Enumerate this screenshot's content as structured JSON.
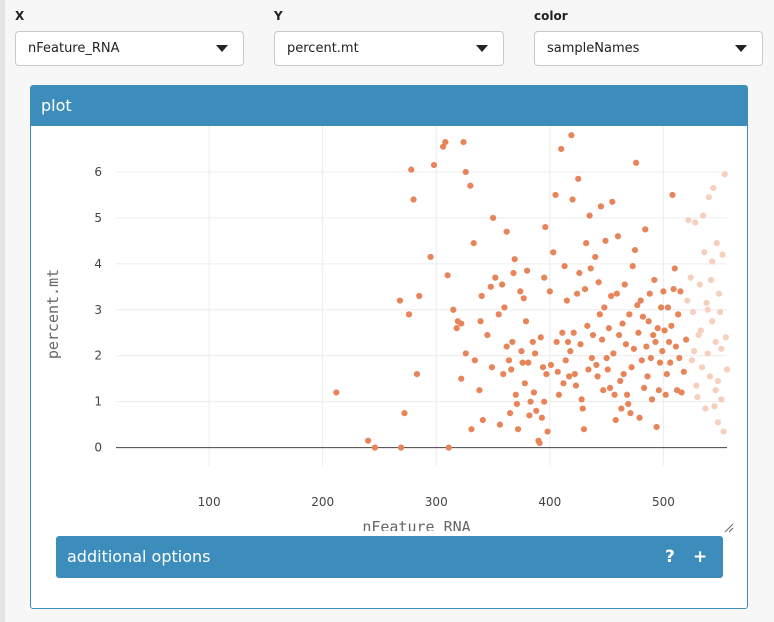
{
  "controls": {
    "x": {
      "label": "X",
      "value": "nFeature_RNA"
    },
    "y": {
      "label": "Y",
      "value": "percent.mt"
    },
    "color": {
      "label": "color",
      "value": "sampleNames"
    }
  },
  "card": {
    "title": "plot",
    "options_label": "additional options",
    "help_symbol": "?",
    "expand_symbol": "+"
  },
  "chart_data": {
    "type": "scatter",
    "xlabel": "nFeature_RNA",
    "ylabel": "percent.mt",
    "xlim": [
      18,
      556
    ],
    "ylim": [
      -0.4,
      7.0
    ],
    "x_ticks": [
      100,
      200,
      300,
      400,
      500
    ],
    "y_ticks": [
      0,
      1,
      2,
      3,
      4,
      5,
      6
    ],
    "grid": true,
    "color": "#e8845a",
    "faded_color": "#f6cfbd",
    "points": [
      [
        212,
        1.2
      ],
      [
        240,
        0.15
      ],
      [
        246,
        0
      ],
      [
        268,
        3.2
      ],
      [
        269,
        0
      ],
      [
        272,
        0.75
      ],
      [
        276,
        2.9
      ],
      [
        278,
        6.05
      ],
      [
        280,
        5.4
      ],
      [
        283,
        1.6
      ],
      [
        285,
        3.3
      ],
      [
        295,
        4.15
      ],
      [
        298,
        6.15
      ],
      [
        306,
        6.55
      ],
      [
        308,
        6.65
      ],
      [
        310,
        3.75
      ],
      [
        311,
        0
      ],
      [
        315,
        3
      ],
      [
        318,
        2.6
      ],
      [
        319,
        2.75
      ],
      [
        324,
        6.65
      ],
      [
        326,
        6
      ],
      [
        322,
        2.7
      ],
      [
        322,
        1.5
      ],
      [
        326,
        2.05
      ],
      [
        330,
        5.7
      ],
      [
        331,
        0.4
      ],
      [
        333,
        4.45
      ],
      [
        334,
        1.9
      ],
      [
        338,
        1.25
      ],
      [
        339,
        2.75
      ],
      [
        340,
        3.3
      ],
      [
        341,
        0.6
      ],
      [
        345,
        2.45
      ],
      [
        348,
        3.5
      ],
      [
        350,
        5.0
      ],
      [
        352,
        3.7
      ],
      [
        349,
        1.75
      ],
      [
        355,
        2.9
      ],
      [
        356,
        0.5
      ],
      [
        358,
        3.55
      ],
      [
        359,
        1.6
      ],
      [
        360,
        3.05
      ],
      [
        362,
        4.7
      ],
      [
        362,
        2.2
      ],
      [
        364,
        1.9
      ],
      [
        365,
        0.75
      ],
      [
        366,
        1.7
      ],
      [
        367,
        2.3
      ],
      [
        368,
        3.8
      ],
      [
        369,
        4.1
      ],
      [
        370,
        1.15
      ],
      [
        371,
        0.95
      ],
      [
        372,
        0.4
      ],
      [
        374,
        3.4
      ],
      [
        375,
        2.1
      ],
      [
        376,
        1.85
      ],
      [
        377,
        3.25
      ],
      [
        378,
        1.4
      ],
      [
        379,
        2.75
      ],
      [
        380,
        3.85
      ],
      [
        381,
        1.85
      ],
      [
        382,
        0.7
      ],
      [
        383,
        1.0
      ],
      [
        385,
        2.3
      ],
      [
        386,
        1.2
      ],
      [
        387,
        2.05
      ],
      [
        388,
        0.8
      ],
      [
        390,
        0.15
      ],
      [
        391,
        0.1
      ],
      [
        392,
        2.4
      ],
      [
        393,
        0.65
      ],
      [
        394,
        1.75
      ],
      [
        395,
        1.0
      ],
      [
        395,
        3.7
      ],
      [
        396,
        4.8
      ],
      [
        397,
        1.6
      ],
      [
        398,
        0.35
      ],
      [
        400,
        3.4
      ],
      [
        401,
        1.8
      ],
      [
        403,
        4.25
      ],
      [
        405,
        5.5
      ],
      [
        406,
        2.3
      ],
      [
        407,
        1.65
      ],
      [
        408,
        1.15
      ],
      [
        410,
        6.5
      ],
      [
        411,
        2.5
      ],
      [
        412,
        1.4
      ],
      [
        413,
        3.95
      ],
      [
        414,
        1.9
      ],
      [
        415,
        3.2
      ],
      [
        416,
        2.3
      ],
      [
        417,
        1.55
      ],
      [
        418,
        2.1
      ],
      [
        419,
        6.8
      ],
      [
        420,
        5.4
      ],
      [
        421,
        2.5
      ],
      [
        422,
        1.6
      ],
      [
        423,
        1.35
      ],
      [
        424,
        3.35
      ],
      [
        425,
        5.85
      ],
      [
        426,
        3.8
      ],
      [
        427,
        2.25
      ],
      [
        428,
        1.05
      ],
      [
        429,
        0.85
      ],
      [
        430,
        0.4
      ],
      [
        431,
        3.45
      ],
      [
        432,
        4.45
      ],
      [
        433,
        2.65
      ],
      [
        434,
        1.7
      ],
      [
        435,
        5.05
      ],
      [
        436,
        3.9
      ],
      [
        437,
        1.95
      ],
      [
        438,
        2.45
      ],
      [
        440,
        4.15
      ],
      [
        441,
        1.8
      ],
      [
        442,
        1.55
      ],
      [
        443,
        3.6
      ],
      [
        444,
        2.9
      ],
      [
        445,
        5.25
      ],
      [
        446,
        2.35
      ],
      [
        447,
        1.25
      ],
      [
        448,
        3.05
      ],
      [
        449,
        4.5
      ],
      [
        450,
        1.95
      ],
      [
        451,
        1.7
      ],
      [
        452,
        2.6
      ],
      [
        453,
        1.3
      ],
      [
        454,
        3.3
      ],
      [
        455,
        5.35
      ],
      [
        456,
        2.05
      ],
      [
        457,
        1.15
      ],
      [
        458,
        0.6
      ],
      [
        459,
        3.35
      ],
      [
        460,
        4.6
      ],
      [
        461,
        2.45
      ],
      [
        462,
        1.45
      ],
      [
        463,
        0.85
      ],
      [
        464,
        2.7
      ],
      [
        465,
        1.6
      ],
      [
        466,
        3.55
      ],
      [
        467,
        2.25
      ],
      [
        468,
        1.15
      ],
      [
        469,
        0.95
      ],
      [
        470,
        2.9
      ],
      [
        471,
        0.75
      ],
      [
        472,
        1.75
      ],
      [
        473,
        3.95
      ],
      [
        474,
        2.15
      ],
      [
        475,
        4.3
      ],
      [
        476,
        6.2
      ],
      [
        477,
        3.1
      ],
      [
        478,
        2.5
      ],
      [
        479,
        0.65
      ],
      [
        480,
        3.2
      ],
      [
        481,
        1.9
      ],
      [
        482,
        2.85
      ],
      [
        483,
        1.3
      ],
      [
        484,
        4.75
      ],
      [
        485,
        2.2
      ],
      [
        486,
        1.55
      ],
      [
        487,
        2.75
      ],
      [
        488,
        3.35
      ],
      [
        489,
        1.95
      ],
      [
        490,
        1.05
      ],
      [
        491,
        2.45
      ],
      [
        492,
        3.65
      ],
      [
        493,
        2.3
      ],
      [
        494,
        0.45
      ],
      [
        495,
        2.6
      ],
      [
        496,
        1.25
      ],
      [
        497,
        1.85
      ],
      [
        498,
        3.05
      ],
      [
        499,
        2.1
      ],
      [
        500,
        3.4
      ],
      [
        501,
        2.55
      ],
      [
        502,
        1.15
      ],
      [
        503,
        1.6
      ],
      [
        504,
        3.05
      ],
      [
        505,
        2.3
      ],
      [
        506,
        1.85
      ],
      [
        507,
        2.65
      ],
      [
        508,
        5.5
      ],
      [
        509,
        3.45
      ],
      [
        510,
        3.9
      ],
      [
        511,
        2.2
      ],
      [
        512,
        1.25
      ],
      [
        513,
        2.9
      ],
      [
        514,
        1.95
      ],
      [
        515,
        3.4
      ],
      [
        516,
        1.2
      ],
      [
        518,
        1.65
      ],
      [
        520,
        2.35
      ]
    ],
    "faded_points": [
      [
        522,
        4.95
      ],
      [
        524,
        3.7
      ],
      [
        526,
        2.95
      ],
      [
        528,
        4.9
      ],
      [
        529,
        1.35
      ],
      [
        531,
        2.45
      ],
      [
        532,
        3.55
      ],
      [
        534,
        1.75
      ],
      [
        535,
        5.05
      ],
      [
        536,
        4.25
      ],
      [
        537,
        0.85
      ],
      [
        538,
        3.15
      ],
      [
        539,
        2.05
      ],
      [
        540,
        5.45
      ],
      [
        541,
        1.55
      ],
      [
        542,
        3.65
      ],
      [
        543,
        2.75
      ],
      [
        544,
        5.65
      ],
      [
        545,
        0.9
      ],
      [
        546,
        2.3
      ],
      [
        547,
        4.45
      ],
      [
        548,
        1.45
      ],
      [
        549,
        3.35
      ],
      [
        550,
        2.95
      ],
      [
        551,
        1.05
      ],
      [
        552,
        4.2
      ],
      [
        553,
        0.35
      ],
      [
        554,
        5.95
      ],
      [
        555,
        2.4
      ],
      [
        556,
        1.7
      ],
      [
        525,
        1.9
      ],
      [
        533,
        2.55
      ],
      [
        539,
        3.0
      ],
      [
        546,
        1.25
      ],
      [
        551,
        2.15
      ],
      [
        543,
        4.05
      ],
      [
        548,
        0.55
      ],
      [
        530,
        1.1
      ],
      [
        527,
        2.1
      ],
      [
        521,
        3.2
      ]
    ]
  }
}
